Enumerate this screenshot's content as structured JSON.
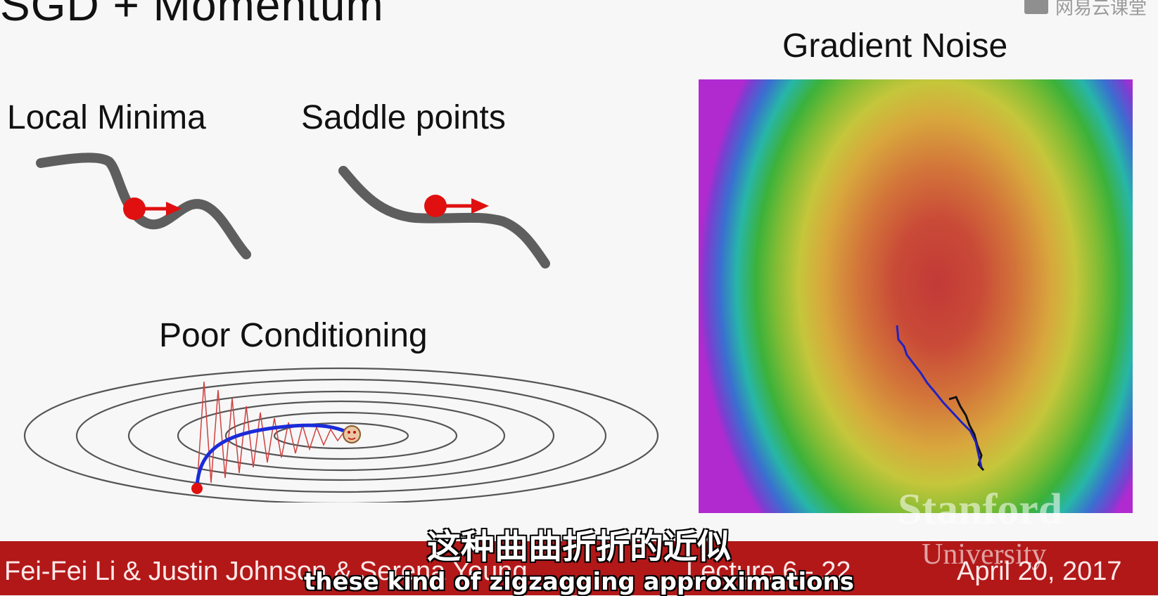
{
  "slide": {
    "title": "SGD + Momentum",
    "watermark": "网易云课堂"
  },
  "panels": {
    "local_minima": "Local Minima",
    "saddle_points": "Saddle points",
    "poor_conditioning": "Poor Conditioning",
    "gradient_noise": "Gradient Noise"
  },
  "footer": {
    "authors": "Fei-Fei Li & Justin Johnson & Serena Yeung",
    "lecture": "Lecture 6 - 22",
    "date": "April 20, 2017",
    "logo_line1": "Stanford",
    "logo_line2": "University"
  },
  "subtitles": {
    "chinese": "这种曲曲折折的近似",
    "english": "these kind of zigzagging approximations"
  },
  "colors": {
    "footer_bg": "#b21818",
    "ball": "#e01010",
    "momentum_path": "#1a2bd8",
    "sgd_path": "#d04040"
  }
}
